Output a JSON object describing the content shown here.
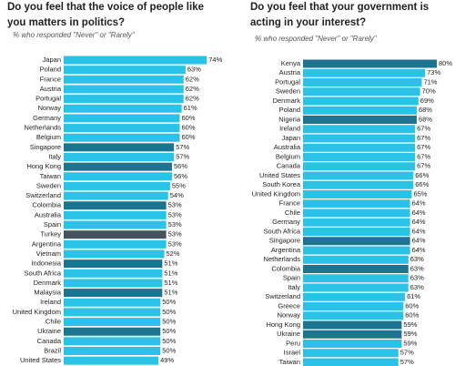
{
  "chart_data": [
    {
      "type": "barh",
      "title": "Do you feel that the voice of people like you matters in politics?",
      "subtitle": "% who responded \"Never\" or \"Rarely\"",
      "categories": [
        "Japan",
        "Poland",
        "France",
        "Austria",
        "Portugal",
        "Norway",
        "Germany",
        "Netherlands",
        "Belgium",
        "Singapore",
        "Italy",
        "Hong Kong",
        "Taiwan",
        "Sweden",
        "Switzerland",
        "Colombia",
        "Australia",
        "Spain",
        "Turkey",
        "Argentina",
        "Vietnam",
        "Indonesia",
        "South Africa",
        "Denmark",
        "Malaysia",
        "Ireland",
        "United Kingdom",
        "Chile",
        "Ukraine",
        "Canada",
        "Brazil",
        "United States"
      ],
      "values": [
        74,
        63,
        62,
        62,
        62,
        61,
        60,
        60,
        60,
        57,
        57,
        56,
        56,
        55,
        54,
        53,
        53,
        53,
        53,
        53,
        52,
        51,
        51,
        51,
        51,
        50,
        50,
        50,
        50,
        50,
        50,
        49
      ],
      "value_labels": [
        "74%",
        "63%",
        "62%",
        "62%",
        "62%",
        "61%",
        "60%",
        "60%",
        "60%",
        "57%",
        "57%",
        "56%",
        "56%",
        "55%",
        "54%",
        "53%",
        "53%",
        "53%",
        "53%",
        "53%",
        "52%",
        "51%",
        "51%",
        "51%",
        "51%",
        "50%",
        "50%",
        "50%",
        "50%",
        "50%",
        "50%",
        "49%"
      ],
      "colors": [
        "#2ac2e6",
        "#2ac2e6",
        "#2ac2e6",
        "#2ac2e6",
        "#2ac2e6",
        "#2ac2e6",
        "#2ac2e6",
        "#2ac2e6",
        "#2ac2e6",
        "#1b7590",
        "#2ac2e6",
        "#1b7590",
        "#2ac2e6",
        "#2ac2e6",
        "#2ac2e6",
        "#1b7590",
        "#2ac2e6",
        "#2ac2e6",
        "#45535e",
        "#2ac2e6",
        "#2ac2e6",
        "#1b7590",
        "#2ac2e6",
        "#2ac2e6",
        "#1b7590",
        "#2ac2e6",
        "#2ac2e6",
        "#2ac2e6",
        "#1b7590",
        "#2ac2e6",
        "#2ac2e6",
        "#2ac2e6"
      ],
      "xlim": [
        0,
        80
      ]
    },
    {
      "type": "barh",
      "title": "Do you feel that your government is acting in your interest?",
      "subtitle": "% who responded \"Never\" or \"Rarely\"",
      "categories": [
        "Kenya",
        "Austria",
        "Portugal",
        "Sweden",
        "Denmark",
        "Poland",
        "Nigeria",
        "Ireland",
        "Japan",
        "Australia",
        "Belgium",
        "Canada",
        "United States",
        "South Korea",
        "United Kingdom",
        "France",
        "Chile",
        "Germany",
        "South Africa",
        "Singapore",
        "Argentina",
        "Netherlands",
        "Colombia",
        "Spain",
        "Italy",
        "Switzerland",
        "Greece",
        "Norway",
        "Hong Kong",
        "Ukraine",
        "Peru",
        "Israel",
        "Taiwan"
      ],
      "values": [
        80,
        73,
        71,
        70,
        69,
        68,
        68,
        67,
        67,
        67,
        67,
        67,
        66,
        66,
        65,
        64,
        64,
        64,
        64,
        64,
        64,
        63,
        63,
        63,
        63,
        61,
        60,
        60,
        59,
        59,
        59,
        57,
        57
      ],
      "value_labels": [
        "80%",
        "73%",
        "71%",
        "70%",
        "69%",
        "68%",
        "68%",
        "67%",
        "67%",
        "67%",
        "67%",
        "67%",
        "66%",
        "66%",
        "65%",
        "64%",
        "64%",
        "64%",
        "64%",
        "64%",
        "64%",
        "63%",
        "63%",
        "63%",
        "63%",
        "61%",
        "60%",
        "60%",
        "59%",
        "59%",
        "59%",
        "57%",
        "57%"
      ],
      "colors": [
        "#1b7590",
        "#2ac2e6",
        "#2ac2e6",
        "#2ac2e6",
        "#2ac2e6",
        "#2ac2e6",
        "#1b7590",
        "#2ac2e6",
        "#2ac2e6",
        "#2ac2e6",
        "#2ac2e6",
        "#2ac2e6",
        "#2ac2e6",
        "#2ac2e6",
        "#2ac2e6",
        "#2ac2e6",
        "#2ac2e6",
        "#2ac2e6",
        "#2ac2e6",
        "#1b7590",
        "#2ac2e6",
        "#2ac2e6",
        "#1b7590",
        "#2ac2e6",
        "#2ac2e6",
        "#2ac2e6",
        "#2ac2e6",
        "#2ac2e6",
        "#1b7590",
        "#1b7590",
        "#2ac2e6",
        "#2ac2e6",
        "#2ac2e6"
      ],
      "xlim": [
        0,
        80
      ]
    }
  ]
}
